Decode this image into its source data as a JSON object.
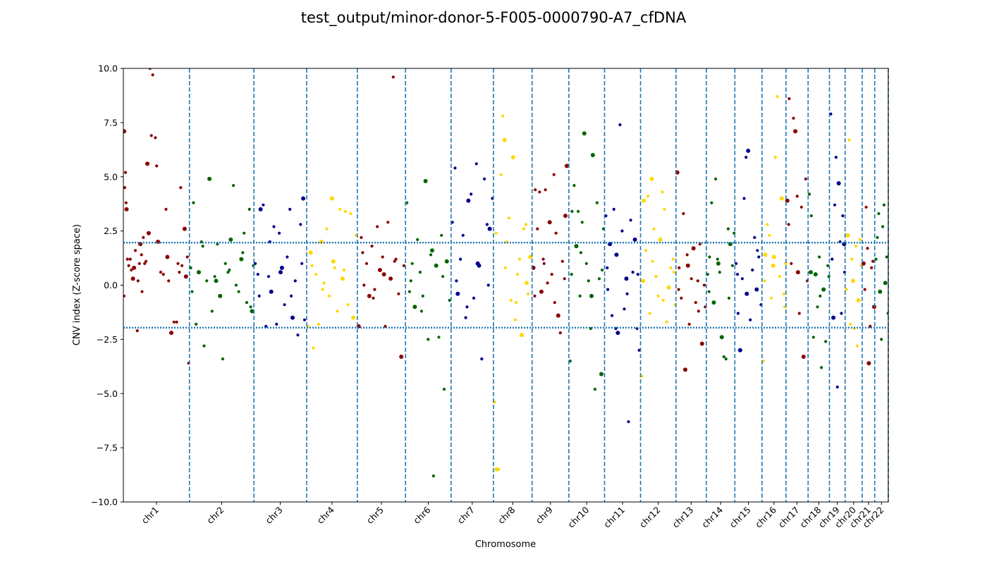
{
  "chart_data": {
    "type": "scatter",
    "title": "test_output/minor-donor-5-F005-0000790-A7_cfDNA",
    "xlabel": "Chromosome",
    "ylabel": "CNV index (Z-score space)",
    "ylim": [
      -10,
      10
    ],
    "yticks": [
      -10.0,
      -7.5,
      -5.0,
      -2.5,
      0.0,
      2.5,
      5.0,
      7.5,
      10.0
    ],
    "ytick_labels": [
      "−10.0",
      "−7.5",
      "−5.0",
      "−2.5",
      "0.0",
      "2.5",
      "5.0",
      "7.5",
      "10.0"
    ],
    "threshold_lines": [
      1.96,
      -1.96
    ],
    "threshold_color": "#1f77b4",
    "boundary_color": "#1f77b4",
    "grid": false,
    "chromosomes": [
      {
        "name": "chr1",
        "size": 248,
        "color": "#8b0000"
      },
      {
        "name": "chr2",
        "size": 242,
        "color": "#006400"
      },
      {
        "name": "chr3",
        "size": 198,
        "color": "#00008b"
      },
      {
        "name": "chr4",
        "size": 190,
        "color": "#ffd700"
      },
      {
        "name": "chr5",
        "size": 181,
        "color": "#8b0000"
      },
      {
        "name": "chr6",
        "size": 171,
        "color": "#006400"
      },
      {
        "name": "chr7",
        "size": 159,
        "color": "#00008b"
      },
      {
        "name": "chr8",
        "size": 145,
        "color": "#ffd700"
      },
      {
        "name": "chr9",
        "size": 138,
        "color": "#8b0000"
      },
      {
        "name": "chr10",
        "size": 134,
        "color": "#006400"
      },
      {
        "name": "chr11",
        "size": 135,
        "color": "#00008b"
      },
      {
        "name": "chr12",
        "size": 133,
        "color": "#ffd700"
      },
      {
        "name": "chr13",
        "size": 114,
        "color": "#8b0000"
      },
      {
        "name": "chr14",
        "size": 107,
        "color": "#006400"
      },
      {
        "name": "chr15",
        "size": 102,
        "color": "#00008b"
      },
      {
        "name": "chr16",
        "size": 90,
        "color": "#ffd700"
      },
      {
        "name": "chr17",
        "size": 83,
        "color": "#8b0000"
      },
      {
        "name": "chr18",
        "size": 80,
        "color": "#006400"
      },
      {
        "name": "chr19",
        "size": 59,
        "color": "#00008b"
      },
      {
        "name": "chr20",
        "size": 64,
        "color": "#ffd700"
      },
      {
        "name": "chr21",
        "size": 47,
        "color": "#8b0000"
      },
      {
        "name": "chr22",
        "size": 51,
        "color": "#006400"
      }
    ],
    "series": [
      {
        "chrom": "chr1",
        "x": [
          3,
          5,
          8,
          10,
          12,
          20,
          26,
          30,
          36,
          45,
          52,
          60,
          64,
          68,
          75,
          80,
          90,
          100,
          110,
          120,
          130,
          140,
          160,
          170,
          180,
          200,
          210,
          220,
          230,
          240,
          2,
          15,
          40,
          55,
          70,
          85,
          95,
          105,
          125,
          150,
          165,
          190,
          205,
          215,
          235,
          245
        ],
        "y": [
          7.1,
          4.5,
          5.2,
          3.8,
          3.5,
          0.9,
          1.2,
          0.7,
          0.3,
          1.6,
          -2.1,
          1.0,
          1.9,
          1.4,
          2.2,
          1.0,
          5.6,
          10.0,
          9.7,
          6.8,
          2.0,
          0.6,
          3.5,
          0.2,
          -2.2,
          -1.7,
          0.6,
          0.9,
          2.6,
          1.3,
          -0.5,
          1.2,
          0.8,
          0.2,
          -0.3,
          1.1,
          2.4,
          6.9,
          5.5,
          0.5,
          1.3,
          -1.7,
          1.0,
          4.5,
          0.4,
          -3.6
        ]
      },
      {
        "chrom": "chr2",
        "x": [
          5,
          15,
          25,
          35,
          45,
          55,
          65,
          75,
          85,
          95,
          105,
          115,
          125,
          135,
          145,
          155,
          165,
          175,
          185,
          195,
          205,
          215,
          225,
          235,
          240,
          10,
          50,
          100,
          150,
          200,
          230
        ],
        "y": [
          0.8,
          3.8,
          -1.8,
          0.6,
          2.0,
          -2.8,
          0.2,
          4.9,
          -1.2,
          0.4,
          1.9,
          -0.5,
          -3.4,
          1.0,
          0.6,
          2.1,
          4.6,
          0.0,
          -0.3,
          1.2,
          2.4,
          -0.8,
          3.5,
          -1.2,
          0.9,
          -0.3,
          1.8,
          0.2,
          0.7,
          1.5,
          -1.0
        ]
      },
      {
        "chrom": "chr3",
        "x": [
          5,
          15,
          25,
          35,
          45,
          55,
          65,
          75,
          85,
          95,
          105,
          115,
          125,
          135,
          145,
          155,
          165,
          175,
          185,
          190,
          20,
          60,
          100,
          140,
          180
        ],
        "y": [
          1.0,
          0.5,
          3.5,
          3.7,
          -1.9,
          0.4,
          -0.3,
          2.7,
          -1.8,
          2.4,
          0.8,
          -0.9,
          1.3,
          3.5,
          -1.5,
          0.2,
          -2.3,
          2.8,
          4.0,
          -1.6,
          -0.5,
          2.0,
          0.6,
          -0.5,
          1.0
        ]
      },
      {
        "chrom": "chr4",
        "x": [
          5,
          15,
          25,
          35,
          45,
          55,
          65,
          75,
          85,
          95,
          105,
          115,
          125,
          135,
          145,
          155,
          165,
          175,
          185,
          20,
          60,
          100,
          140
        ],
        "y": [
          -1.9,
          1.5,
          -2.9,
          0.5,
          -1.8,
          2.0,
          0.1,
          2.6,
          -0.5,
          4.0,
          0.8,
          -1.2,
          3.5,
          0.3,
          3.4,
          -0.9,
          3.3,
          -1.5,
          2.3,
          0.9,
          -0.2,
          1.1,
          0.7
        ]
      },
      {
        "chrom": "chr5",
        "x": [
          5,
          15,
          25,
          35,
          45,
          55,
          65,
          75,
          85,
          95,
          105,
          115,
          125,
          135,
          145,
          155,
          165,
          175,
          20,
          60,
          100,
          140
        ],
        "y": [
          -1.9,
          2.2,
          0.0,
          1.0,
          -0.5,
          1.8,
          -0.2,
          2.7,
          0.7,
          1.3,
          -1.9,
          2.9,
          0.3,
          9.6,
          1.2,
          -0.4,
          -3.3,
          0.9,
          1.5,
          -0.6,
          0.5,
          1.1
        ]
      },
      {
        "chrom": "chr6",
        "x": [
          5,
          15,
          25,
          35,
          45,
          55,
          65,
          75,
          85,
          95,
          105,
          115,
          125,
          135,
          145,
          155,
          165,
          20,
          60,
          100,
          140
        ],
        "y": [
          3.8,
          -0.3,
          1.0,
          -1.0,
          2.1,
          0.6,
          -0.5,
          4.8,
          -2.5,
          1.4,
          -8.8,
          0.9,
          -2.4,
          2.3,
          -4.8,
          1.1,
          -0.7,
          0.2,
          -1.2,
          1.6,
          0.4
        ]
      },
      {
        "chrom": "chr7",
        "x": [
          5,
          15,
          25,
          35,
          45,
          55,
          65,
          75,
          85,
          95,
          105,
          115,
          125,
          135,
          145,
          155,
          20,
          60,
          100,
          140
        ],
        "y": [
          2.9,
          5.4,
          -0.4,
          1.2,
          2.3,
          -1.5,
          3.9,
          4.2,
          -0.6,
          5.6,
          0.9,
          -3.4,
          4.9,
          2.8,
          2.6,
          4.0,
          0.2,
          -1.0,
          1.0,
          0.0
        ]
      },
      {
        "chrom": "chr8",
        "x": [
          5,
          12,
          20,
          28,
          35,
          42,
          50,
          58,
          66,
          74,
          82,
          90,
          98,
          106,
          114,
          122,
          130,
          138,
          10,
          45,
          85,
          125
        ],
        "y": [
          -5.4,
          -8.5,
          -8.5,
          5.1,
          7.8,
          6.7,
          2.0,
          3.1,
          -0.7,
          5.9,
          -1.6,
          0.5,
          1.2,
          -2.3,
          2.6,
          2.8,
          -0.4,
          1.3,
          2.4,
          0.8,
          -0.8,
          0.1
        ]
      },
      {
        "chrom": "chr9",
        "x": [
          5,
          12,
          20,
          28,
          35,
          42,
          50,
          58,
          66,
          74,
          82,
          90,
          98,
          106,
          114,
          122,
          130,
          10,
          45,
          85,
          125
        ],
        "y": [
          0.8,
          4.4,
          2.6,
          4.3,
          -0.3,
          1.2,
          4.4,
          0.1,
          2.9,
          0.5,
          5.1,
          2.4,
          -1.4,
          -2.2,
          1.1,
          0.3,
          5.5,
          -0.5,
          1.0,
          -0.8,
          3.2
        ]
      },
      {
        "chrom": "chr10",
        "x": [
          5,
          12,
          20,
          28,
          35,
          42,
          50,
          58,
          66,
          74,
          82,
          90,
          98,
          106,
          114,
          122,
          130,
          10,
          45,
          85,
          125
        ],
        "y": [
          -3.5,
          3.4,
          4.6,
          1.8,
          3.4,
          -0.5,
          2.9,
          7.0,
          1.0,
          0.2,
          -2.0,
          6.0,
          -4.8,
          3.8,
          0.3,
          -4.1,
          2.6,
          0.5,
          1.5,
          -0.5,
          0.7
        ]
      },
      {
        "chrom": "chr11",
        "x": [
          5,
          12,
          20,
          28,
          35,
          42,
          50,
          58,
          66,
          74,
          82,
          90,
          98,
          106,
          114,
          122,
          130,
          10,
          45,
          85,
          125
        ],
        "y": [
          3.2,
          -0.2,
          1.9,
          -1.4,
          3.5,
          -2.0,
          -2.2,
          7.4,
          2.5,
          -1.1,
          0.3,
          -6.3,
          3.0,
          0.6,
          2.1,
          -2.0,
          -3.0,
          0.8,
          1.4,
          -0.4,
          0.5
        ]
      },
      {
        "chrom": "chr12",
        "x": [
          5,
          12,
          20,
          28,
          35,
          42,
          50,
          58,
          66,
          74,
          82,
          90,
          98,
          106,
          114,
          122,
          130,
          10,
          45,
          85,
          125
        ],
        "y": [
          -4.2,
          3.9,
          1.6,
          4.1,
          -1.3,
          4.9,
          2.6,
          0.4,
          -0.5,
          2.1,
          4.3,
          3.5,
          -1.7,
          -0.1,
          0.8,
          1.2,
          -0.9,
          0.2,
          1.1,
          -0.7,
          0.6
        ]
      },
      {
        "chrom": "chr13",
        "x": [
          5,
          12,
          20,
          28,
          35,
          42,
          50,
          58,
          66,
          74,
          82,
          90,
          98,
          106,
          110,
          10,
          45,
          85
        ],
        "y": [
          5.2,
          0.8,
          -0.6,
          3.3,
          -3.9,
          1.4,
          -1.8,
          0.3,
          1.7,
          -0.8,
          0.2,
          1.9,
          -2.7,
          0.0,
          -1.0,
          -0.2,
          0.9,
          -1.2
        ]
      },
      {
        "chrom": "chr14",
        "x": [
          5,
          12,
          20,
          28,
          35,
          42,
          50,
          58,
          66,
          74,
          82,
          90,
          98,
          104,
          10,
          45,
          85
        ],
        "y": [
          0.5,
          1.3,
          3.8,
          -0.8,
          4.9,
          1.2,
          0.6,
          -2.4,
          -3.3,
          -3.4,
          2.6,
          1.9,
          0.9,
          2.4,
          -0.3,
          1.0,
          -0.6
        ]
      },
      {
        "chrom": "chr15",
        "x": [
          5,
          12,
          20,
          28,
          35,
          42,
          50,
          58,
          66,
          74,
          82,
          90,
          98,
          10,
          45,
          85
        ],
        "y": [
          1.0,
          -1.3,
          -3.0,
          0.3,
          4.0,
          5.9,
          6.2,
          -1.6,
          0.7,
          2.2,
          -0.2,
          1.3,
          -0.9,
          0.5,
          -0.4,
          1.6
        ]
      },
      {
        "chrom": "chr16",
        "x": [
          5,
          12,
          20,
          28,
          35,
          42,
          50,
          58,
          66,
          74,
          82,
          88,
          10,
          45,
          85
        ],
        "y": [
          -3.5,
          1.4,
          2.8,
          2.3,
          -0.6,
          0.9,
          5.9,
          8.7,
          0.4,
          4.0,
          -0.4,
          1.0,
          0.2,
          1.3,
          -1.0
        ]
      },
      {
        "chrom": "chr17",
        "x": [
          5,
          12,
          20,
          28,
          35,
          42,
          50,
          58,
          66,
          74,
          80,
          10,
          45
        ],
        "y": [
          3.9,
          8.6,
          1.0,
          7.7,
          7.1,
          4.1,
          -1.3,
          3.6,
          -3.3,
          4.9,
          0.2,
          2.8,
          0.6
        ]
      },
      {
        "chrom": "chr18",
        "x": [
          5,
          12,
          20,
          28,
          35,
          42,
          50,
          58,
          66,
          74,
          78,
          10,
          45
        ],
        "y": [
          4.2,
          3.2,
          -2.4,
          0.5,
          -1.0,
          1.3,
          -3.8,
          -0.2,
          -2.6,
          0.9,
          0.4,
          0.6,
          -0.5
        ]
      },
      {
        "chrom": "chr19",
        "x": [
          5,
          10,
          15,
          20,
          25,
          30,
          35,
          40,
          45,
          50,
          55,
          57
        ],
        "y": [
          7.9,
          1.2,
          -1.5,
          3.7,
          5.9,
          -4.7,
          4.7,
          2.0,
          -1.3,
          3.2,
          1.9,
          0.6
        ]
      },
      {
        "chrom": "chr20",
        "x": [
          5,
          10,
          15,
          20,
          25,
          30,
          35,
          40,
          45,
          50,
          55,
          60
        ],
        "y": [
          -0.2,
          2.3,
          6.7,
          -1.8,
          1.2,
          0.2,
          -2.0,
          1.8,
          -2.8,
          -0.7,
          2.1,
          0.9
        ]
      },
      {
        "chrom": "chr21",
        "x": [
          5,
          10,
          15,
          20,
          25,
          30,
          35,
          40,
          45
        ],
        "y": [
          1.0,
          -0.2,
          3.6,
          1.7,
          -3.6,
          -1.9,
          0.8,
          1.1,
          -1.0
        ]
      },
      {
        "chrom": "chr22",
        "x": [
          5,
          10,
          15,
          20,
          25,
          30,
          35,
          40,
          45,
          50
        ],
        "y": [
          1.2,
          2.2,
          3.3,
          -0.3,
          -2.5,
          2.7,
          3.7,
          0.1,
          1.3,
          -1.3
        ]
      }
    ]
  }
}
